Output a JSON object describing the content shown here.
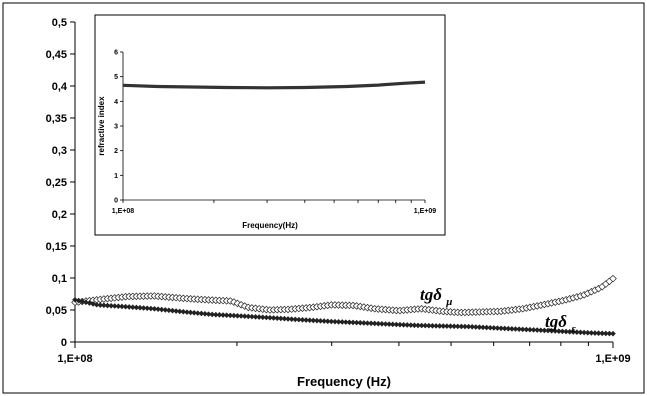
{
  "chart_data": [
    {
      "type": "scatter",
      "x_scale": "log",
      "xlim": [
        100000000,
        1000000000
      ],
      "ylim": [
        0,
        0.5
      ],
      "xlabel": "Frequency (Hz)",
      "ylabel": "",
      "x_tick_labels": [
        "1,E+08",
        "1,E+09"
      ],
      "y_tick_labels": [
        "0",
        "0,05",
        "0,1",
        "0,15",
        "0,2",
        "0,25",
        "0,3",
        "0,35",
        "0,4",
        "0,45",
        "0,5"
      ],
      "grid": false,
      "series": [
        {
          "label_main": "tgδ",
          "label_sub": "μ",
          "marker": "open-diamond",
          "x": [
            100000000,
            110000000,
            125000000,
            140000000,
            160000000,
            175000000,
            195000000,
            210000000,
            230000000,
            250000000,
            275000000,
            300000000,
            330000000,
            360000000,
            400000000,
            440000000,
            480000000,
            520000000,
            570000000,
            620000000,
            680000000,
            740000000,
            810000000,
            880000000,
            950000000,
            1000000000
          ],
          "y": [
            0.062,
            0.066,
            0.071,
            0.072,
            0.068,
            0.066,
            0.064,
            0.054,
            0.05,
            0.051,
            0.054,
            0.058,
            0.057,
            0.052,
            0.049,
            0.052,
            0.048,
            0.046,
            0.047,
            0.048,
            0.052,
            0.058,
            0.065,
            0.073,
            0.085,
            0.099
          ]
        },
        {
          "label_main": "tgδ",
          "label_sub": "ε",
          "marker": "filled-diamond",
          "x": [
            100000000,
            110000000,
            125000000,
            140000000,
            160000000,
            180000000,
            200000000,
            230000000,
            260000000,
            300000000,
            340000000,
            380000000,
            430000000,
            480000000,
            540000000,
            600000000,
            670000000,
            750000000,
            830000000,
            920000000,
            1000000000
          ],
          "y": [
            0.066,
            0.058,
            0.055,
            0.052,
            0.047,
            0.043,
            0.041,
            0.038,
            0.035,
            0.032,
            0.03,
            0.028,
            0.026,
            0.025,
            0.024,
            0.022,
            0.02,
            0.018,
            0.016,
            0.014,
            0.013
          ]
        }
      ]
    },
    {
      "type": "line",
      "x_scale": "log",
      "xlim": [
        100000000,
        1000000000
      ],
      "ylim": [
        0,
        6
      ],
      "xlabel": "Frequency(Hz)",
      "ylabel": "refractive index",
      "x_tick_labels": [
        "1,E+08",
        "1,E+09"
      ],
      "y_tick_labels": [
        "0",
        "1",
        "2",
        "3",
        "4",
        "5",
        "6"
      ],
      "grid": false,
      "series": [
        {
          "x": [
            100000000,
            130000000,
            170000000,
            220000000,
            300000000,
            400000000,
            550000000,
            700000000,
            850000000,
            1000000000
          ],
          "y": [
            4.65,
            4.6,
            4.58,
            4.56,
            4.55,
            4.56,
            4.6,
            4.66,
            4.73,
            4.78
          ]
        }
      ]
    }
  ]
}
